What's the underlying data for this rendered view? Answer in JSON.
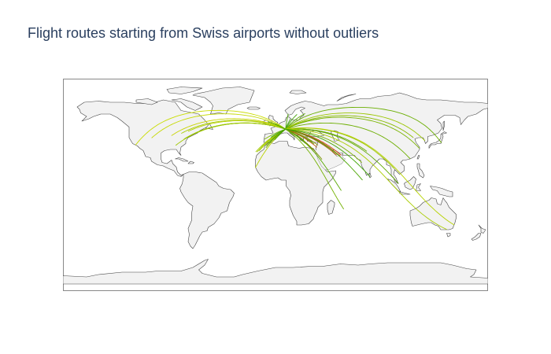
{
  "title": "Flight routes starting from Swiss airports without outliers",
  "map": {
    "projection": "equirectangular",
    "land_color": "#f2f2f2",
    "coast_color": "#444444",
    "frame_color": "#888888"
  },
  "origin": {
    "name": "Switzerland",
    "lon": 8.5,
    "lat": 47.2
  },
  "routes": [
    {
      "lon": -73.8,
      "lat": 40.6,
      "color": "#7fb800"
    },
    {
      "lon": -79.6,
      "lat": 43.7,
      "color": "#a8cc00"
    },
    {
      "lon": -87.9,
      "lat": 41.9,
      "color": "#c8d400"
    },
    {
      "lon": -104.7,
      "lat": 39.9,
      "color": "#c5d900"
    },
    {
      "lon": -71.0,
      "lat": 42.4,
      "color": "#6fae00"
    },
    {
      "lon": -75.2,
      "lat": 39.9,
      "color": "#8cc000"
    },
    {
      "lon": -77.4,
      "lat": 38.9,
      "color": "#96c400"
    },
    {
      "lon": -73.7,
      "lat": 45.5,
      "color": "#b5d000"
    },
    {
      "lon": -118.4,
      "lat": 33.9,
      "color": "#c9dc00"
    },
    {
      "lon": -84.4,
      "lat": 33.6,
      "color": "#a0c800"
    },
    {
      "lon": -17.0,
      "lat": 14.7,
      "color": "#b8d200"
    },
    {
      "lon": -15.4,
      "lat": 28.0,
      "color": "#9cc600"
    },
    {
      "lon": -16.6,
      "lat": 28.1,
      "color": "#a4ca00"
    },
    {
      "lon": -13.6,
      "lat": 29.0,
      "color": "#b0ce00"
    },
    {
      "lon": -9.1,
      "lat": 38.8,
      "color": "#7cb600"
    },
    {
      "lon": -7.6,
      "lat": 33.4,
      "color": "#8fc100"
    },
    {
      "lon": -3.6,
      "lat": 40.5,
      "color": "#2e9e20"
    },
    {
      "lon": -8.0,
      "lat": 31.6,
      "color": "#6aab00"
    },
    {
      "lon": -5.9,
      "lat": 35.7,
      "color": "#5aa600"
    },
    {
      "lon": 2.1,
      "lat": 41.3,
      "color": "#3e9e10"
    },
    {
      "lon": -0.5,
      "lat": 38.3,
      "color": "#4aa200"
    },
    {
      "lon": -0.4,
      "lat": 51.5,
      "color": "#2f9a20"
    },
    {
      "lon": -6.3,
      "lat": 53.4,
      "color": "#49a400"
    },
    {
      "lon": 12.6,
      "lat": 55.6,
      "color": "#3aa010"
    },
    {
      "lon": 10.7,
      "lat": 59.9,
      "color": "#4aa500"
    },
    {
      "lon": 24.9,
      "lat": 60.3,
      "color": "#58a800"
    },
    {
      "lon": 18.1,
      "lat": 59.6,
      "color": "#44a208"
    },
    {
      "lon": 37.4,
      "lat": 55.9,
      "color": "#6ab000"
    },
    {
      "lon": 28.8,
      "lat": 41.0,
      "color": "#2f9a30"
    },
    {
      "lon": 23.9,
      "lat": 37.9,
      "color": "#3ea020"
    },
    {
      "lon": 25.2,
      "lat": 35.3,
      "color": "#48a018"
    },
    {
      "lon": 32.5,
      "lat": 34.9,
      "color": "#56a810"
    },
    {
      "lon": 30.8,
      "lat": 36.9,
      "color": "#62aa08"
    },
    {
      "lon": 34.9,
      "lat": 32.0,
      "color": "#c05a10"
    },
    {
      "lon": 31.4,
      "lat": 30.1,
      "color": "#a87010"
    },
    {
      "lon": 35.8,
      "lat": 33.8,
      "color": "#8a8a08"
    },
    {
      "lon": 55.4,
      "lat": 25.3,
      "color": "#d04010"
    },
    {
      "lon": 51.6,
      "lat": 25.3,
      "color": "#c84a10"
    },
    {
      "lon": 54.7,
      "lat": 24.4,
      "color": "#b05a10"
    },
    {
      "lon": 39.2,
      "lat": 21.7,
      "color": "#7a9000"
    },
    {
      "lon": 50.6,
      "lat": 26.3,
      "color": "#a06a10"
    },
    {
      "lon": 72.9,
      "lat": 19.1,
      "color": "#7ab000"
    },
    {
      "lon": 77.1,
      "lat": 28.6,
      "color": "#6aab00"
    },
    {
      "lon": 103.99,
      "lat": 1.36,
      "color": "#5ea800"
    },
    {
      "lon": 100.7,
      "lat": 13.7,
      "color": "#9ac400"
    },
    {
      "lon": 113.9,
      "lat": 22.3,
      "color": "#6cae00"
    },
    {
      "lon": 121.8,
      "lat": 31.1,
      "color": "#7ab400"
    },
    {
      "lon": 116.6,
      "lat": 40.1,
      "color": "#88ba00"
    },
    {
      "lon": 140.4,
      "lat": 35.8,
      "color": "#6aae00"
    },
    {
      "lon": 126.4,
      "lat": 37.5,
      "color": "#9ac600"
    },
    {
      "lon": 151.2,
      "lat": -33.9,
      "color": "#b6d200"
    },
    {
      "lon": 144.8,
      "lat": -37.7,
      "color": "#a9cc00"
    },
    {
      "lon": 55.6,
      "lat": -4.7,
      "color": "#58a800"
    },
    {
      "lon": 57.7,
      "lat": -20.4,
      "color": "#72b000"
    },
    {
      "lon": 73.5,
      "lat": 4.2,
      "color": "#4aa500"
    },
    {
      "lon": 79.9,
      "lat": 7.2,
      "color": "#3ea400"
    }
  ]
}
